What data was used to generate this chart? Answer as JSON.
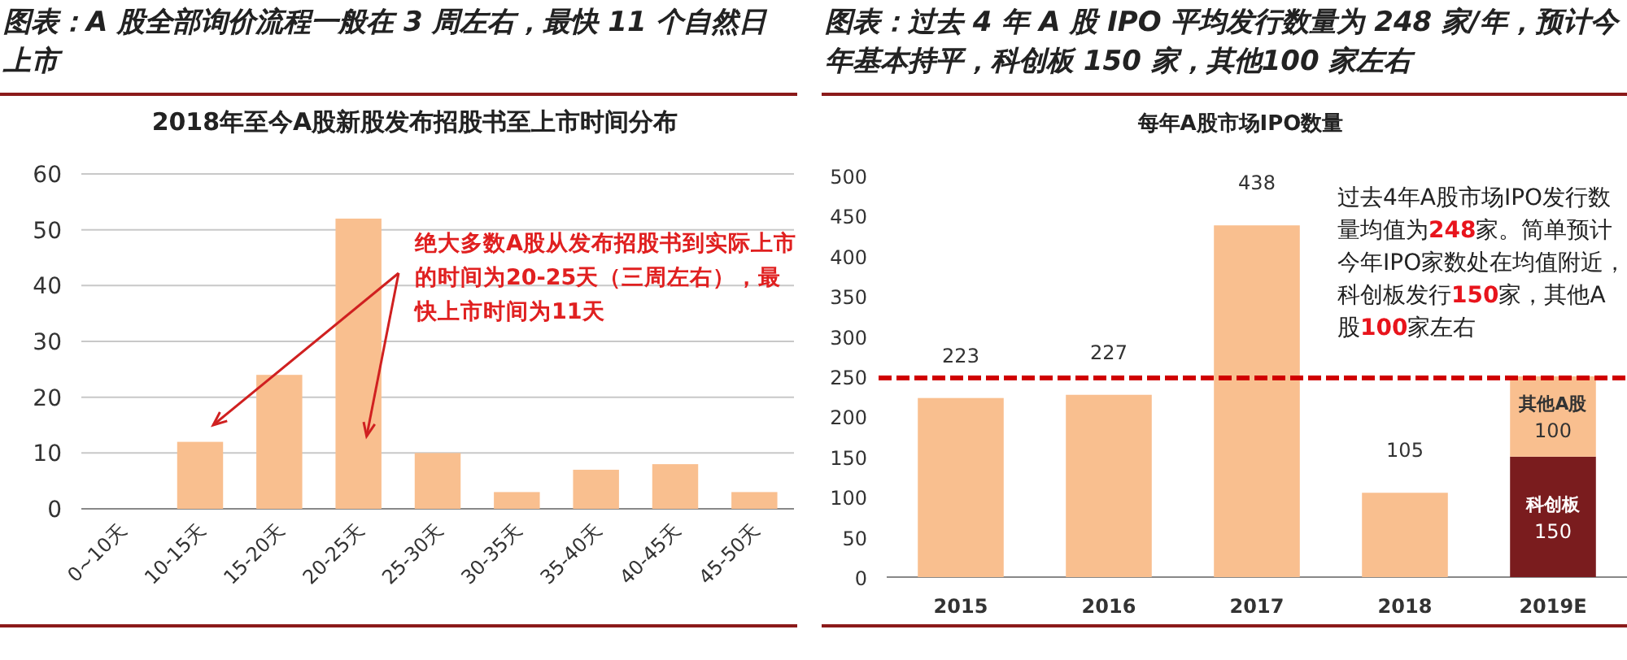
{
  "chart_data": [
    {
      "type": "bar",
      "title": "图表：A 股全部询价流程一般在 3 周左右，最快 11 个自然日上市",
      "subtitle": "2018年至今A股新股发布招股书至上市时间分布",
      "categories": [
        "0~10天",
        "10-15天",
        "15-20天",
        "20-25天",
        "25-30天",
        "30-35天",
        "35-40天",
        "40-45天",
        "45-50天"
      ],
      "values": [
        0,
        12,
        24,
        52,
        10,
        3,
        7,
        8,
        3
      ],
      "color": "#f9bf8f",
      "ylim": [
        0,
        60
      ],
      "yticks": [
        0,
        10,
        20,
        30,
        40,
        50,
        60
      ],
      "grid": "y",
      "annotations": [
        "绝大多数A股从发布招股书到实际上市的时间为20-25天（三周左右），最快上市时间为11天"
      ]
    },
    {
      "type": "bar",
      "title": "图表：过去 4 年 A 股 IPO 平均发行数量为 248 家/年，预计今年基本持平，科创板 150 家，其他100 家左右",
      "subtitle": "每年A股市场IPO数量",
      "categories": [
        "2015",
        "2016",
        "2017",
        "2018",
        "2019E"
      ],
      "stacked": true,
      "data_labels": true,
      "series": [
        {
          "name": "科创板",
          "color": "#7a1c1e",
          "values": [
            null,
            null,
            null,
            null,
            150
          ]
        },
        {
          "name": "其他A股",
          "color": "#f9bf8f",
          "values": [
            223,
            227,
            438,
            105,
            100
          ]
        }
      ],
      "ylim": [
        0,
        500
      ],
      "yticks": [
        0,
        50,
        100,
        150,
        200,
        250,
        300,
        350,
        400,
        450,
        500
      ],
      "ref_lines": [
        {
          "axis": "y",
          "value": 248,
          "color": "#d00000",
          "line_style": "dashed"
        }
      ],
      "annotations": [
        "过去4年A股市场IPO发行数量均值为**248**家。简单预计今年IPO家数处在均值附近，科创板发行**150**家，其他A股**100**家左右"
      ]
    }
  ]
}
